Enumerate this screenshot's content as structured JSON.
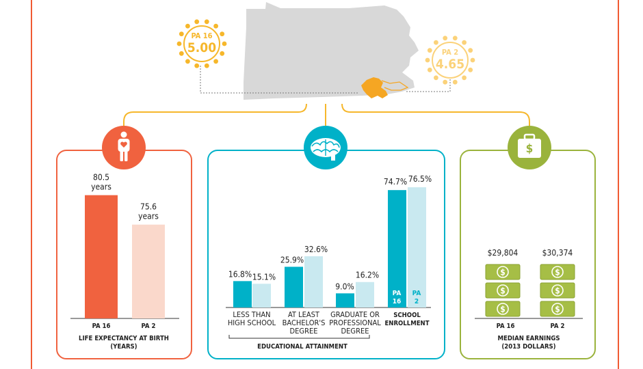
{
  "colors": {
    "frame": "#f05a33",
    "health": "#f0623f",
    "health_light": "#fad8cb",
    "education": "#00b1c8",
    "education_light": "#c9e9f0",
    "income": "#9ab33c",
    "money": "#a6be46",
    "connector": "#f6b72b",
    "map_gray": "#d8d8d8",
    "highlight": "#f5a623",
    "sun": "#f6b72b",
    "sun_light": "#fbd27a"
  },
  "map": {
    "pa16_badge": {
      "label": "PA 16",
      "value": "5.00"
    },
    "pa2_badge": {
      "label": "PA 2",
      "value": "4.65"
    }
  },
  "icons": {
    "health": "person-heart-icon",
    "education": "brain-icon",
    "income": "briefcase-dollar-icon"
  },
  "chart_data": [
    {
      "type": "bar",
      "title": "LIFE EXPECTANCY AT BIRTH (YEARS)",
      "title_lines": [
        "LIFE EXPECTANCY AT BIRTH",
        "(YEARS)"
      ],
      "categories": [
        "PA 16",
        "PA 2"
      ],
      "values": [
        80.5,
        75.6
      ],
      "value_labels": [
        [
          "80.5",
          "years"
        ],
        [
          "75.6",
          "years"
        ]
      ],
      "unit": "years"
    },
    {
      "type": "bar",
      "title": "EDUCATIONAL ATTAINMENT",
      "categories": [
        {
          "label": [
            "LESS THAN",
            "HIGH SCHOOL"
          ]
        },
        {
          "label": [
            "AT LEAST",
            "BACHELOR'S",
            "DEGREE"
          ]
        },
        {
          "label": [
            "GRADUATE OR",
            "PROFESSIONAL",
            "DEGREE"
          ]
        }
      ],
      "series": [
        {
          "name": "PA 16",
          "values": [
            16.8,
            25.9,
            9.0
          ],
          "labels": [
            "16.8%",
            "25.9%",
            "9.0%"
          ]
        },
        {
          "name": "PA 2",
          "values": [
            15.1,
            32.6,
            16.2
          ],
          "labels": [
            "15.1%",
            "32.6%",
            "16.2%"
          ]
        }
      ],
      "unit": "%"
    },
    {
      "type": "bar",
      "title": "SCHOOL ENROLLMENT",
      "title_lines": [
        "SCHOOL",
        "ENROLLMENT"
      ],
      "categories": [
        "PA 16",
        "PA 2"
      ],
      "inbar_labels": [
        [
          "PA",
          "16"
        ],
        [
          "PA",
          "2"
        ]
      ],
      "values": [
        74.7,
        76.5
      ],
      "value_labels": [
        "74.7%",
        "76.5%"
      ],
      "unit": "%"
    },
    {
      "type": "bar",
      "title": "MEDIAN EARNINGS (2013 DOLLARS)",
      "title_lines": [
        "MEDIAN EARNINGS",
        "(2013 DOLLARS)"
      ],
      "categories": [
        "PA 16",
        "PA 2"
      ],
      "values": [
        29804,
        30374
      ],
      "value_labels": [
        "$29,804",
        "$30,374"
      ],
      "unit": "2013 dollars",
      "symbol": "$"
    }
  ]
}
